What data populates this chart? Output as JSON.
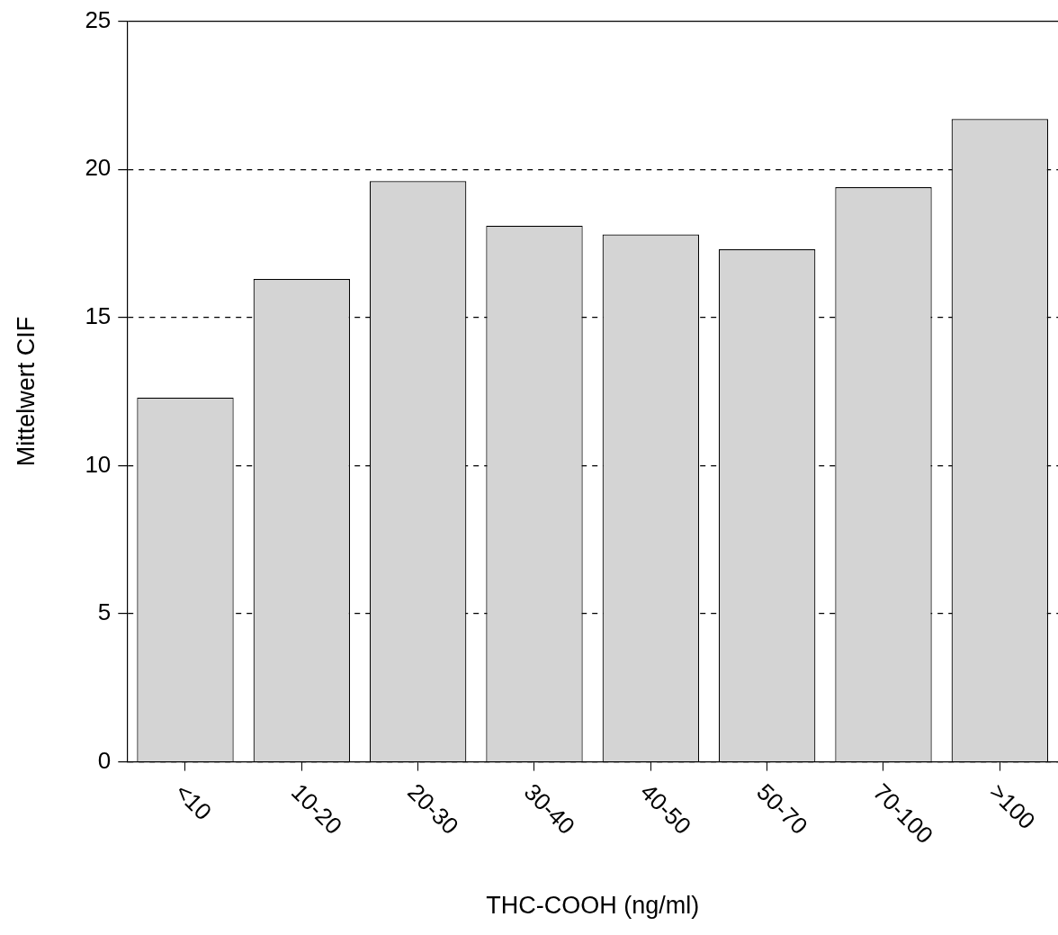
{
  "chart_data": {
    "type": "bar",
    "xlabel": "THC-COOH (ng/ml)",
    "ylabel": "Mittelwert CIF",
    "categories": [
      "<10",
      "10-20",
      "20-30",
      "30-40",
      "40-50",
      "50-70",
      "70-100",
      ">100"
    ],
    "values": [
      12.3,
      16.3,
      19.6,
      18.1,
      17.8,
      17.3,
      19.4,
      21.7
    ],
    "color": "#d4d4d4",
    "ylim": [
      0,
      25
    ],
    "yticks": [
      0,
      5,
      10,
      15,
      20,
      25
    ],
    "grid": "y",
    "legend": false
  }
}
